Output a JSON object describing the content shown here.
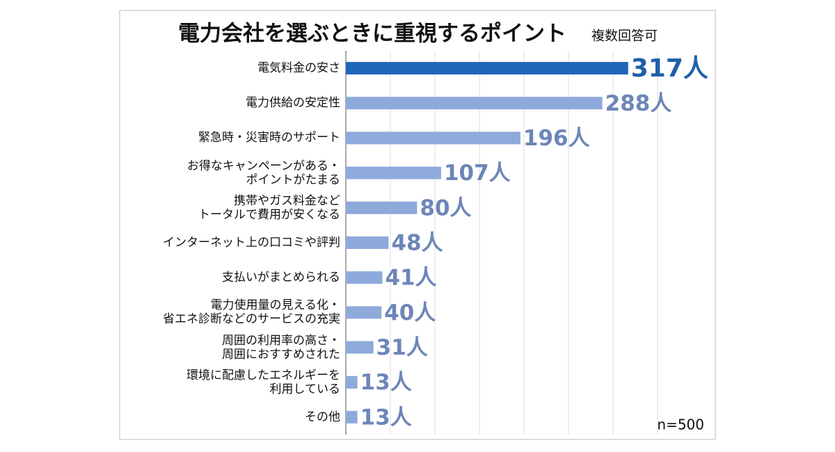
{
  "chart_data": {
    "type": "barh",
    "title": "電力会社を選ぶときに重視するポイント",
    "subtitle": "複数回答可",
    "annotation": "n=500",
    "categories": [
      "電気料金の安さ",
      "電力供給の安定性",
      "緊急時・災害時のサポート",
      "お得なキャンペーンがある・\nポイントがたまる",
      "携帯やガス料金など\nトータルで費用が安くなる",
      "インターネット上の口コミや評判",
      "支払いがまとめられる",
      "電力使用量の見える化・\n省エネ診断などのサービスの充実",
      "周囲の利用率の高さ・\n周囲におすすめされた",
      "環境に配慮したエネルギーを\n利用している",
      "その他"
    ],
    "values": [
      317,
      288,
      196,
      107,
      80,
      48,
      41,
      40,
      31,
      13,
      13
    ],
    "value_labels": [
      "317人",
      "288人",
      "196人",
      "107人",
      "80人",
      "48人",
      "41人",
      "40人",
      "31人",
      "13人",
      "13人"
    ],
    "colors": [
      "#1f66b8",
      "#8eaadb",
      "#8eaadb",
      "#8eaadb",
      "#8eaadb",
      "#8eaadb",
      "#8eaadb",
      "#8eaadb",
      "#8eaadb",
      "#8eaadb",
      "#8eaadb"
    ],
    "xlim": [
      0,
      350
    ],
    "xticks": [
      0,
      50,
      100,
      150,
      200,
      250,
      300,
      350
    ],
    "grid": true
  }
}
